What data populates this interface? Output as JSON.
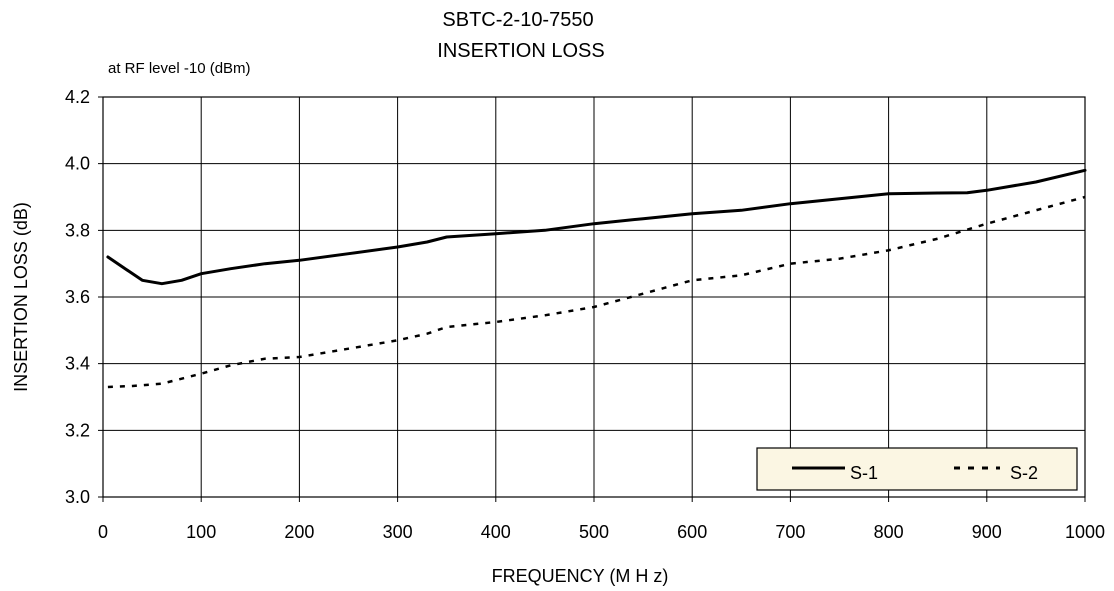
{
  "chart_data": {
    "type": "line",
    "title_line1": "SBTC-2-10-7550",
    "title_line2": "INSERTION LOSS",
    "subtitle": "at RF level -10 (dBm)",
    "xlabel": "FREQUENCY (M H z)",
    "ylabel": "INSERTION LOSS (dB)",
    "xlim": [
      0,
      1000
    ],
    "ylim": [
      3.0,
      4.2
    ],
    "x_ticks": [
      0,
      100,
      200,
      300,
      400,
      500,
      600,
      700,
      800,
      900,
      1000
    ],
    "x_tick_labels": [
      "0",
      "100",
      "200",
      "300",
      "400",
      "500",
      "600",
      "700",
      "800",
      "900",
      "1000"
    ],
    "y_ticks": [
      3.0,
      3.2,
      3.4,
      3.6,
      3.8,
      4.0,
      4.2
    ],
    "y_tick_labels": [
      "3.0",
      "3.2",
      "3.4",
      "3.6",
      "3.8",
      "4.0",
      "4.2"
    ],
    "grid": true,
    "legend_position": "bottom-right",
    "legend_background": "#fbf6e3",
    "series": [
      {
        "name": "S-1",
        "style": "solid",
        "color": "#000000",
        "x": [
          5,
          20,
          40,
          60,
          80,
          100,
          130,
          165,
          200,
          250,
          300,
          330,
          350,
          400,
          450,
          500,
          550,
          600,
          650,
          700,
          750,
          800,
          850,
          880,
          900,
          950,
          1000
        ],
        "y": [
          3.72,
          3.69,
          3.65,
          3.64,
          3.65,
          3.67,
          3.685,
          3.7,
          3.71,
          3.73,
          3.75,
          3.765,
          3.78,
          3.79,
          3.8,
          3.82,
          3.835,
          3.85,
          3.86,
          3.88,
          3.895,
          3.91,
          3.912,
          3.913,
          3.92,
          3.945,
          3.98
        ]
      },
      {
        "name": "S-2",
        "style": "dashed",
        "color": "#000000",
        "x": [
          5,
          30,
          60,
          100,
          130,
          165,
          200,
          250,
          300,
          330,
          350,
          400,
          450,
          500,
          550,
          600,
          650,
          700,
          750,
          800,
          850,
          900,
          950,
          1000
        ],
        "y": [
          3.33,
          3.333,
          3.34,
          3.37,
          3.395,
          3.415,
          3.42,
          3.445,
          3.47,
          3.49,
          3.51,
          3.525,
          3.545,
          3.57,
          3.61,
          3.65,
          3.665,
          3.7,
          3.715,
          3.74,
          3.775,
          3.82,
          3.86,
          3.9
        ]
      }
    ]
  }
}
